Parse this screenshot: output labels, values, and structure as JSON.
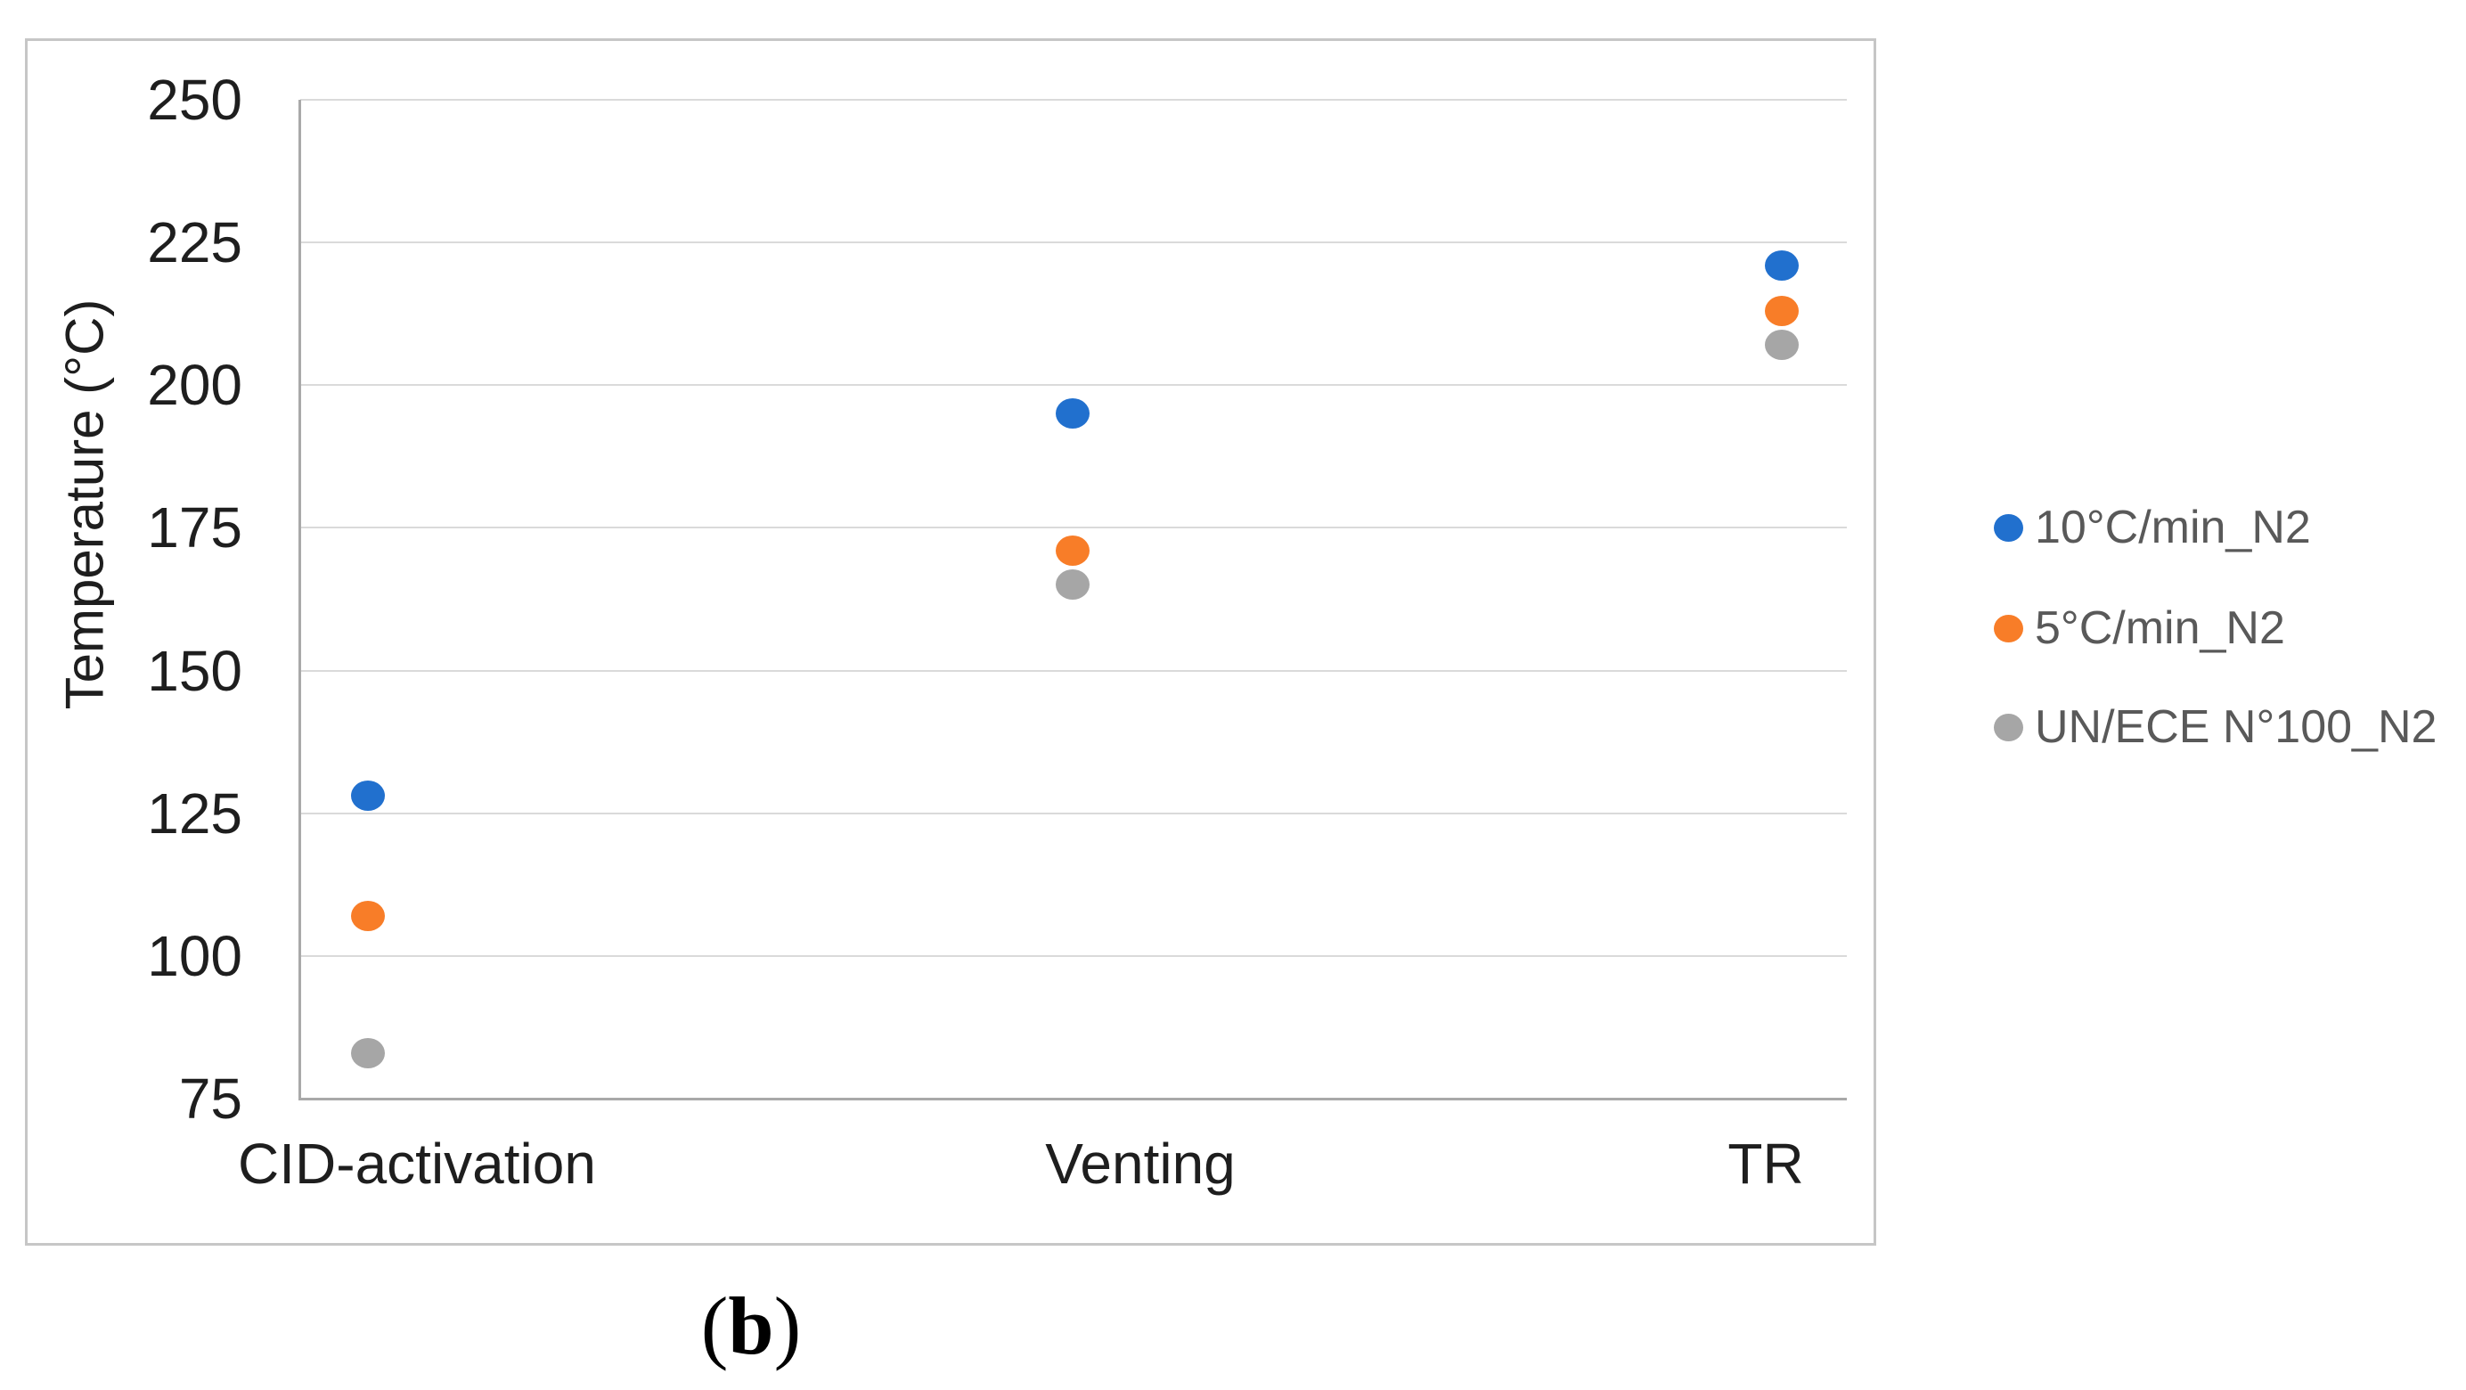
{
  "chart_data": {
    "type": "scatter",
    "title": "",
    "categories": [
      "CID-activation",
      "Venting",
      "TR"
    ],
    "series": [
      {
        "name": "10°C/min_N2",
        "color": "#2170ce",
        "values": [
          128,
          195,
          221
        ]
      },
      {
        "name": "5°C/min_N2",
        "color": "#f87d28",
        "values": [
          107,
          171,
          213
        ]
      },
      {
        "name": "UN/ECE N°100_N2",
        "color": "#a6a6a6",
        "values": [
          83,
          165,
          207
        ]
      }
    ],
    "xlabel": "",
    "ylabel": "Temperature (°C)",
    "ylim": [
      75,
      250
    ],
    "yticks": [
      250,
      225,
      200,
      175,
      150,
      125,
      100,
      75
    ],
    "grid": "horizontal",
    "legend_position": "right",
    "marker": "circle"
  },
  "caption": {
    "open": "(",
    "letter": "b",
    "close": ")"
  },
  "colors": {
    "series_blue": "#2170ce",
    "series_orange": "#f87d28",
    "series_gray": "#a6a6a6",
    "gridline": "#dadada",
    "axis_line": "#a9a9a9",
    "figure_border": "#c6c6c6",
    "tick_text": "#1e1e1e",
    "legend_text": "#595959"
  }
}
